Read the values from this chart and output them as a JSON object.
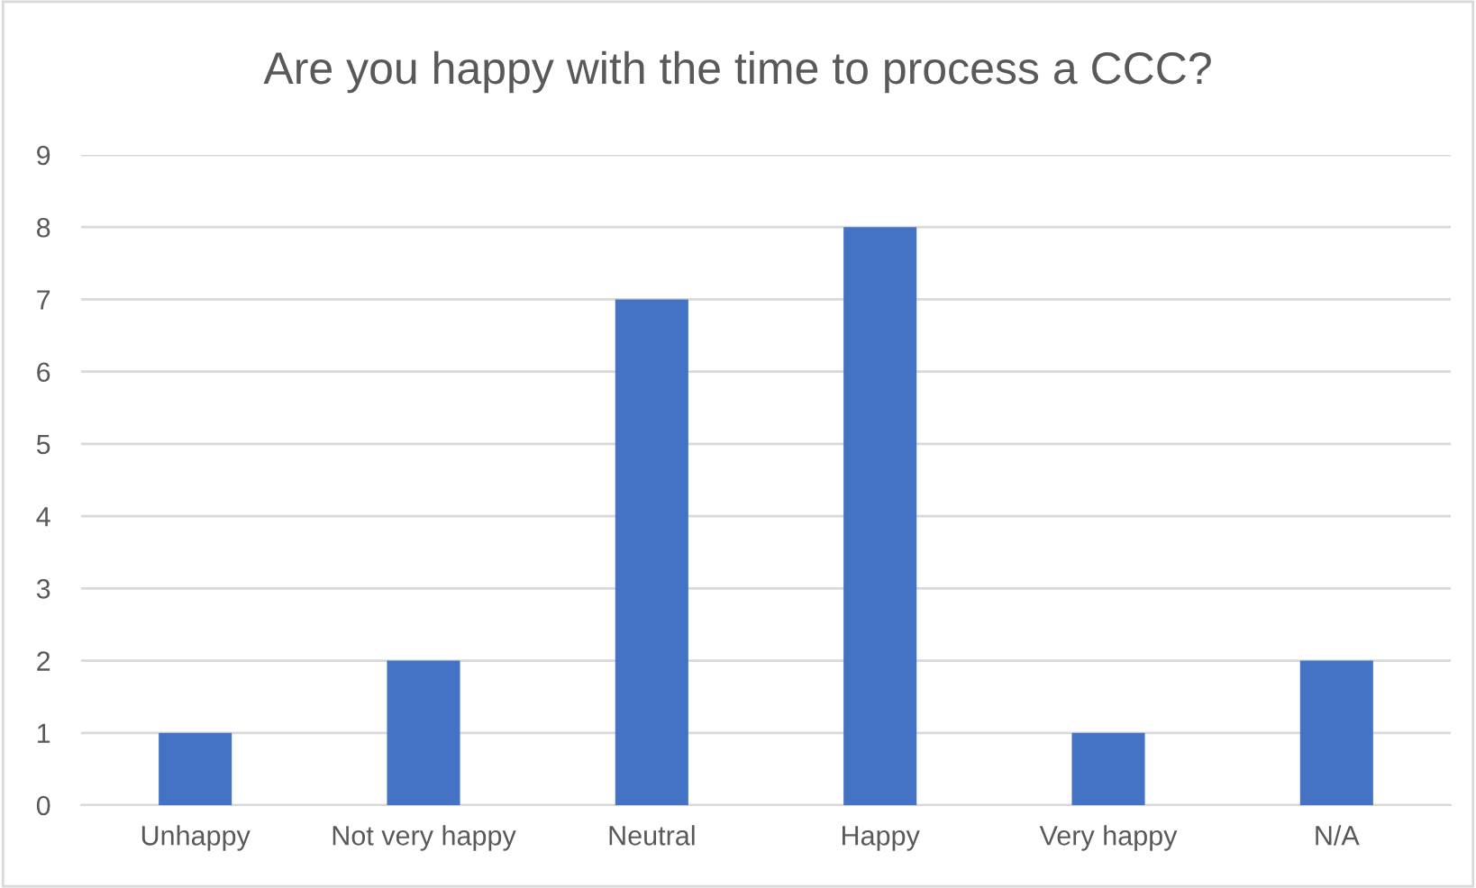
{
  "chart_data": {
    "type": "bar",
    "title": "Are you happy with the time to process a CCC?",
    "categories": [
      "Unhappy",
      "Not very happy",
      "Neutral",
      "Happy",
      "Very happy",
      "N/A"
    ],
    "values": [
      1,
      2,
      7,
      8,
      1,
      2
    ],
    "color": "#4472c4",
    "ylim": [
      0,
      9
    ],
    "yticks": [
      0,
      1,
      2,
      3,
      4,
      5,
      6,
      7,
      8,
      9
    ],
    "grid": "y"
  }
}
